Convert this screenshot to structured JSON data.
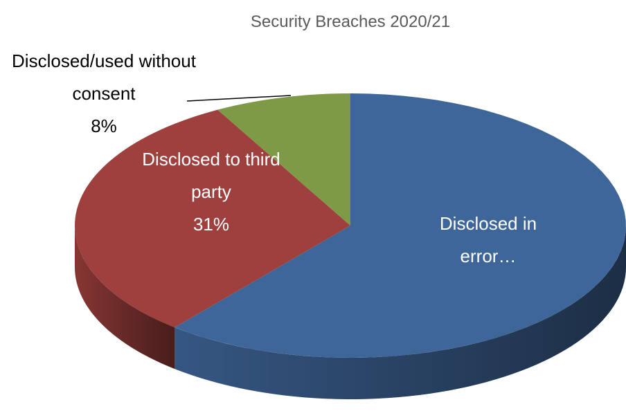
{
  "chart_data": {
    "type": "pie3d",
    "title": "Security Breaches 2020/21",
    "categories": [
      "Disclosed in error…",
      "Disclosed to third party",
      "Disclosed/used without consent"
    ],
    "values": [
      61,
      31,
      8
    ],
    "value_labels": [
      null,
      "31%",
      "8%"
    ],
    "colors": [
      "#3f6699",
      "#9e403d",
      "#7e9a47"
    ]
  }
}
